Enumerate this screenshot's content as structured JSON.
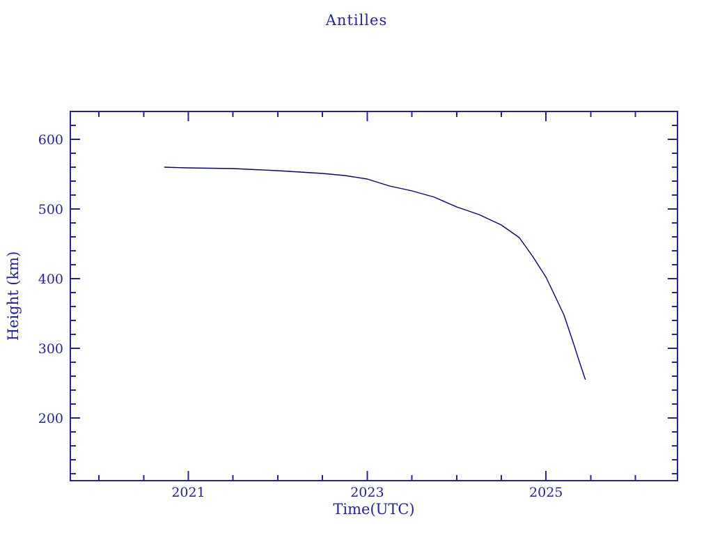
{
  "page_title": "Antilles",
  "colors": {
    "background": "#ffffff",
    "axis_and_text": "#2121ad",
    "line": "#000080"
  },
  "chart_data": {
    "type": "line",
    "title": "Antilles",
    "xlabel": "Time(UTC)",
    "ylabel": "Height (km)",
    "xlim": [
      2019.68,
      2026.47
    ],
    "ylim": [
      110,
      640
    ],
    "x_major_ticks": [
      2021,
      2023,
      2025
    ],
    "x_major_tick_labels": [
      "2021",
      "2023",
      "2025"
    ],
    "x_minor_tick_step": 0.5,
    "x_minor_tick_range": [
      2020,
      2026
    ],
    "y_major_ticks": [
      200,
      300,
      400,
      500,
      600
    ],
    "y_major_tick_labels": [
      "200",
      "300",
      "400",
      "500",
      "600"
    ],
    "y_minor_tick_step": 20,
    "y_minor_tick_range": [
      120,
      620
    ],
    "grid": false,
    "legend_position": "none",
    "series": [
      {
        "name": "height",
        "points": [
          [
            2020.73,
            560
          ],
          [
            2021.0,
            559
          ],
          [
            2021.25,
            558.5
          ],
          [
            2021.5,
            558
          ],
          [
            2021.75,
            556.5
          ],
          [
            2022.0,
            555
          ],
          [
            2022.25,
            553
          ],
          [
            2022.5,
            551
          ],
          [
            2022.75,
            548
          ],
          [
            2023.0,
            543
          ],
          [
            2023.1,
            539
          ],
          [
            2023.25,
            533
          ],
          [
            2023.5,
            526
          ],
          [
            2023.75,
            517
          ],
          [
            2024.0,
            503
          ],
          [
            2024.25,
            492
          ],
          [
            2024.5,
            477
          ],
          [
            2024.7,
            459
          ],
          [
            2024.85,
            432
          ],
          [
            2025.0,
            402
          ],
          [
            2025.1,
            375
          ],
          [
            2025.2,
            348
          ],
          [
            2025.3,
            310
          ],
          [
            2025.38,
            278
          ],
          [
            2025.44,
            255
          ]
        ]
      }
    ]
  }
}
